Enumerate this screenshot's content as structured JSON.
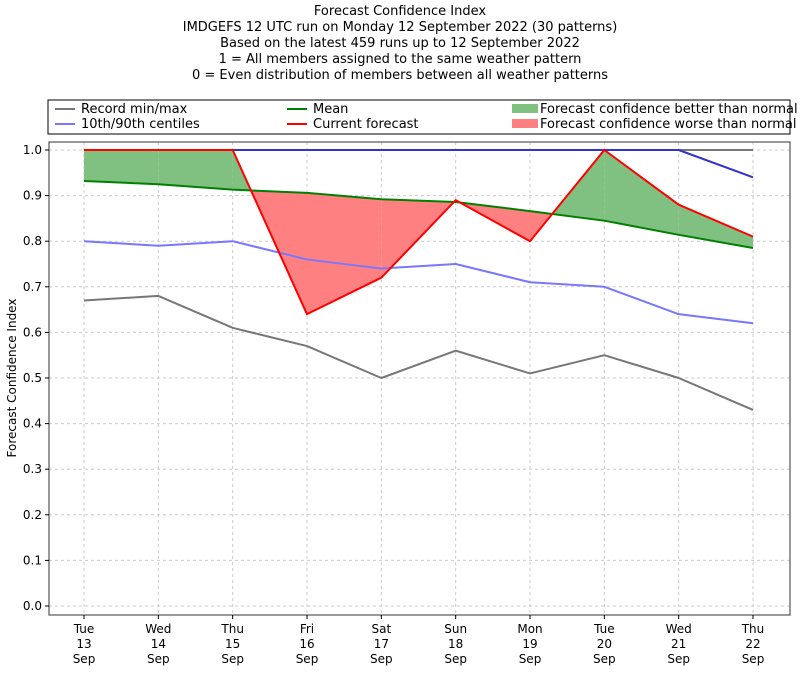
{
  "chart_data": {
    "type": "line",
    "title_lines": [
      "Forecast Confidence Index",
      "IMDGEFS 12 UTC run on Monday 12 September 2022 (30 patterns)",
      "Based on the latest 459 runs up to 12 September 2022",
      "1 = All members assigned to the same weather pattern",
      "0 = Even distribution of members between all weather patterns"
    ],
    "ylabel": "Forecast Confidence Index",
    "xlabel": "",
    "ylim": [
      0,
      1.0
    ],
    "yticks": [
      "0.0",
      "0.1",
      "0.2",
      "0.3",
      "0.4",
      "0.5",
      "0.6",
      "0.7",
      "0.8",
      "0.9",
      "1.0"
    ],
    "categories": [
      [
        "Tue",
        "13",
        "Sep"
      ],
      [
        "Wed",
        "14",
        "Sep"
      ],
      [
        "Thu",
        "15",
        "Sep"
      ],
      [
        "Fri",
        "16",
        "Sep"
      ],
      [
        "Sat",
        "17",
        "Sep"
      ],
      [
        "Sun",
        "18",
        "Sep"
      ],
      [
        "Mon",
        "19",
        "Sep"
      ],
      [
        "Tue",
        "20",
        "Sep"
      ],
      [
        "Wed",
        "21",
        "Sep"
      ],
      [
        "Thu",
        "22",
        "Sep"
      ]
    ],
    "grid": true,
    "legend_placement": "top (above plot)",
    "series": [
      {
        "name": "Record min/max",
        "role": "record_min",
        "color": "#777777",
        "values": [
          0.67,
          0.68,
          0.61,
          0.57,
          0.5,
          0.56,
          0.51,
          0.55,
          0.5,
          0.43
        ]
      },
      {
        "name": "Record min/max",
        "role": "record_max",
        "color": "#777777",
        "values": [
          1.0,
          1.0,
          1.0,
          1.0,
          1.0,
          1.0,
          1.0,
          1.0,
          1.0,
          1.0
        ]
      },
      {
        "name": "10th/90th centiles",
        "role": "p10",
        "color": "#7777ff",
        "values": [
          0.8,
          0.79,
          0.8,
          0.76,
          0.74,
          0.75,
          0.71,
          0.7,
          0.64,
          0.62
        ]
      },
      {
        "name": "10th/90th centiles",
        "role": "p90",
        "color": "#7777ff",
        "values": [
          1.0,
          1.0,
          1.0,
          1.0,
          1.0,
          1.0,
          1.0,
          1.0,
          1.0,
          0.94
        ]
      },
      {
        "name": "Mean",
        "role": "mean",
        "color": "#008000",
        "values": [
          0.932,
          0.925,
          0.913,
          0.906,
          0.892,
          0.886,
          0.866,
          0.845,
          0.814,
          0.785
        ]
      },
      {
        "name": "Current forecast",
        "role": "current",
        "color": "#ff0000",
        "values": [
          1.0,
          1.0,
          1.0,
          0.64,
          0.72,
          0.89,
          0.8,
          1.0,
          0.88,
          0.81
        ]
      }
    ],
    "fills": [
      {
        "name": "Forecast confidence better than normal",
        "color": "#80c080"
      },
      {
        "name": "Forecast confidence worse than normal",
        "color": "#ff8080"
      }
    ],
    "legend": [
      {
        "label": "Record min/max",
        "kind": "line",
        "color": "#777777"
      },
      {
        "label": "10th/90th centiles",
        "kind": "line",
        "color": "#7777ff"
      },
      {
        "label": "Mean",
        "kind": "line",
        "color": "#008000"
      },
      {
        "label": "Current forecast",
        "kind": "line",
        "color": "#ff0000"
      },
      {
        "label": "Forecast confidence better than normal",
        "kind": "patch",
        "color": "#80c080"
      },
      {
        "label": "Forecast confidence worse than normal",
        "kind": "patch",
        "color": "#ff8080"
      }
    ]
  }
}
